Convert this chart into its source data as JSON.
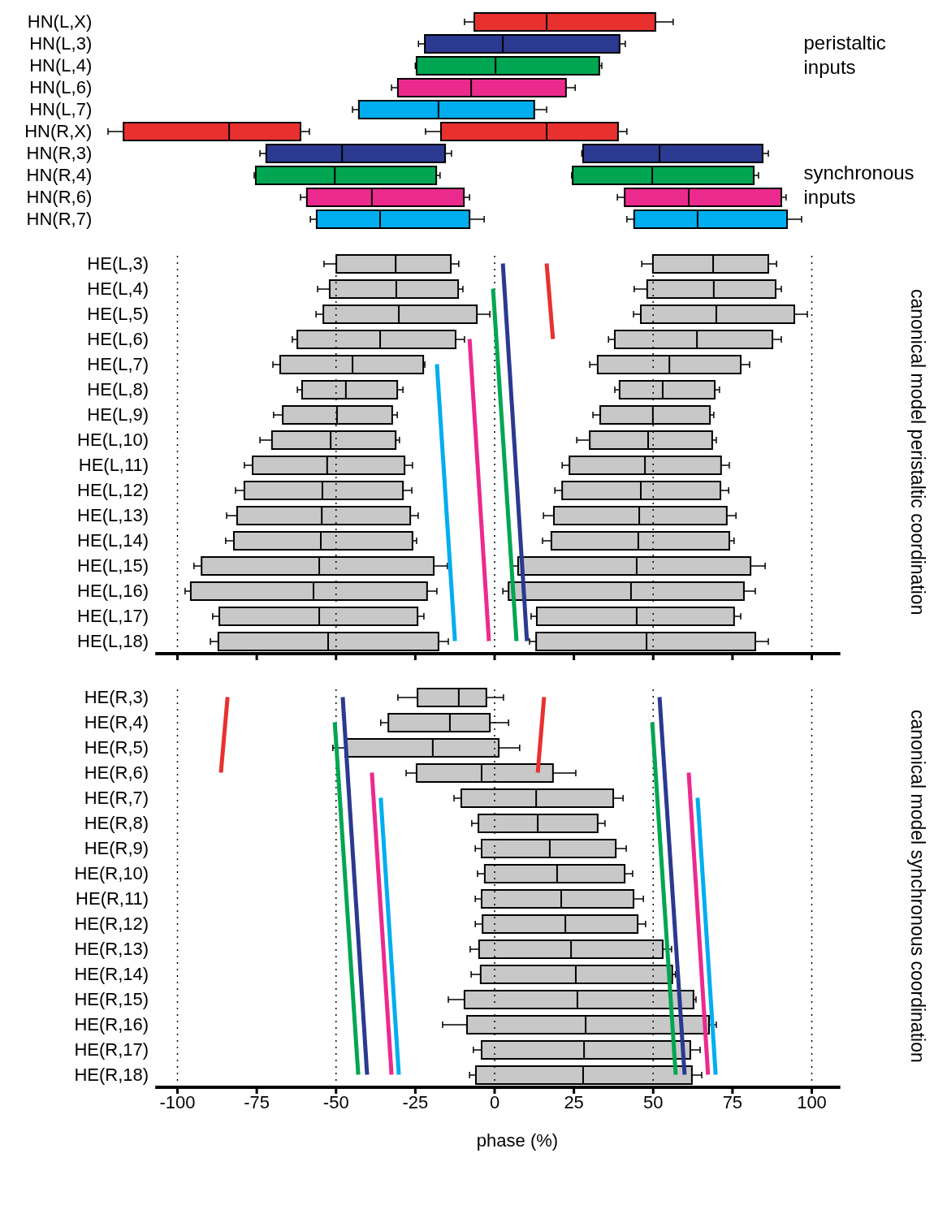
{
  "chart_data": [
    {
      "type": "box",
      "orientation": "horizontal",
      "categories": [
        "HN(L,X)",
        "HN(L,3)",
        "HN(L,4)",
        "HN(L,6)",
        "HN(L,7)",
        "HN(R,X)",
        "HN(R,3)",
        "HN(R,4)",
        "HN(R,6)",
        "HN(R,7)"
      ],
      "xticks": [
        -100,
        -75,
        -50,
        -25,
        0,
        25,
        50,
        75,
        100
      ],
      "tick_labels": "y",
      "annotations": [
        "peristaltic inputs",
        "synchronous inputs"
      ],
      "series": [
        {
          "colors": [
            "#e8312f",
            "#2b3990",
            "#00a651",
            "#ec2a8e",
            "#00aeef",
            "#e8312f",
            "#2b3990",
            "#00a651",
            "#ec2a8e",
            "#00aeef"
          ],
          "boxes": [
            {
              "low": -9.5,
              "q1": -6.4,
              "median": 16.4,
              "q3": 50.7,
              "high": 56.3
            },
            {
              "low": -24,
              "q1": -22,
              "median": 2.6,
              "q3": 39.4,
              "high": 41.2
            },
            {
              "low": -25,
              "q1": -24.6,
              "median": 0.3,
              "q3": 33,
              "high": 33.8
            },
            {
              "low": -32.5,
              "q1": -30.5,
              "median": -7.4,
              "q3": 22.5,
              "high": 25.4
            },
            {
              "low": -44.8,
              "q1": -42.8,
              "median": -17.7,
              "q3": 12.5,
              "high": 16.4
            },
            {
              "low": -121.9,
              "q1": -117,
              "median": -83.7,
              "q3": -61.2,
              "high": -58.4
            },
            {
              "low": -74,
              "q1": -72,
              "median": -48.1,
              "q3": -15.6,
              "high": -13.6
            },
            {
              "low": -75.8,
              "q1": -75.3,
              "median": -50.4,
              "q3": -18.4,
              "high": -17.2
            },
            {
              "low": -61.2,
              "q1": -59.2,
              "median": -38.7,
              "q3": -9.7,
              "high": -7.9
            },
            {
              "low": -58.1,
              "q1": -56.1,
              "median": -36.1,
              "q3": -7.9,
              "high": -3.3
            }
          ]
        },
        {
          "colors": [
            null,
            null,
            null,
            null,
            null,
            "#e8312f",
            "#2b3990",
            "#00a651",
            "#ec2a8e",
            "#00aeef"
          ],
          "boxes": [
            null,
            null,
            null,
            null,
            null,
            {
              "low": -21.8,
              "q1": -16.9,
              "median": 16.4,
              "q3": 38.9,
              "high": 41.7
            },
            {
              "low": 27.5,
              "q1": 27.9,
              "median": 52,
              "q3": 84.5,
              "high": 86.3
            },
            {
              "low": 24.3,
              "q1": 24.6,
              "median": 49.7,
              "q3": 81.7,
              "high": 83.2
            },
            {
              "low": 38.7,
              "q1": 41,
              "median": 61.2,
              "q3": 90.4,
              "high": 91.9
            },
            {
              "low": 41.7,
              "q1": 44,
              "median": 64,
              "q3": 92.2,
              "high": 96.8
            }
          ]
        }
      ]
    },
    {
      "type": "box",
      "orientation": "horizontal",
      "categories": [
        "HE(L,3)",
        "HE(L,4)",
        "HE(L,5)",
        "HE(L,6)",
        "HE(L,7)",
        "HE(L,8)",
        "HE(L,9)",
        "HE(L,10)",
        "HE(L,11)",
        "HE(L,12)",
        "HE(L,13)",
        "HE(L,14)",
        "HE(L,15)",
        "HE(L,16)",
        "HE(L,17)",
        "HE(L,18)"
      ],
      "xlim": [
        -107,
        109
      ],
      "xticks": [
        -100,
        -75,
        -50,
        -25,
        0,
        25,
        50,
        75,
        100
      ],
      "tick_labels": "y",
      "y2label": "canonical model peristaltic coordination",
      "ref_lines": [
        {
          "axis": "x",
          "value": -100,
          "line_style": "dotted"
        },
        {
          "axis": "x",
          "value": -50,
          "line_style": "dotted"
        },
        {
          "axis": "x",
          "value": 0,
          "line_style": "dotted"
        },
        {
          "axis": "x",
          "value": 50,
          "line_style": "dotted"
        },
        {
          "axis": "x",
          "value": 100,
          "line_style": "dotted"
        }
      ],
      "series": [
        {
          "color": "#c8c8c8",
          "boxes": [
            {
              "low": -53.8,
              "q1": -49.9,
              "median": -31.2,
              "q3": -13.8,
              "high": -11.3
            },
            {
              "low": -55.8,
              "q1": -52,
              "median": -31,
              "q3": -11.5,
              "high": -10
            },
            {
              "low": -56.3,
              "q1": -54,
              "median": -30.2,
              "q3": -5.6,
              "high": -1.5
            },
            {
              "low": -63.8,
              "q1": -62.2,
              "median": -36.1,
              "q3": -12.3,
              "high": -9.5
            },
            {
              "low": -69.9,
              "q1": -67.6,
              "median": -44.8,
              "q3": -22.5,
              "high": -22
            },
            {
              "low": -62.2,
              "q1": -60.7,
              "median": -46.9,
              "q3": -30.7,
              "high": -28.9
            },
            {
              "low": -69.7,
              "q1": -66.8,
              "median": -49.7,
              "q3": -32.3,
              "high": -30.7
            },
            {
              "low": -74,
              "q1": -70.2,
              "median": -51.7,
              "q3": -31.2,
              "high": -30
            },
            {
              "low": -78.9,
              "q1": -76.3,
              "median": -52.8,
              "q3": -28.4,
              "high": -25.9
            },
            {
              "low": -81.7,
              "q1": -78.9,
              "median": -54.3,
              "q3": -28.9,
              "high": -26.1
            },
            {
              "low": -84.5,
              "q1": -81.2,
              "median": -54.5,
              "q3": -26.6,
              "high": -24.1
            },
            {
              "low": -84.8,
              "q1": -82.2,
              "median": -54.8,
              "q3": -25.9,
              "high": -24.6
            },
            {
              "low": -94.8,
              "q1": -92.4,
              "median": -55.3,
              "q3": -19.2,
              "high": -14.9
            },
            {
              "low": -97.6,
              "q1": -95.8,
              "median": -57.1,
              "q3": -21.3,
              "high": -18.2
            },
            {
              "low": -88.9,
              "q1": -86.8,
              "median": -55.3,
              "q3": -24.3,
              "high": -22.3
            },
            {
              "low": -89.6,
              "q1": -87.1,
              "median": -52.5,
              "q3": -17.7,
              "high": -14.6
            }
          ]
        },
        {
          "color": "#c8c8c8",
          "boxes": [
            {
              "low": 46.4,
              "q1": 49.9,
              "median": 68.9,
              "q3": 86.3,
              "high": 88.9
            },
            {
              "low": 44,
              "q1": 48.1,
              "median": 69.1,
              "q3": 88.6,
              "high": 90.4
            },
            {
              "low": 43.8,
              "q1": 46.1,
              "median": 69.9,
              "q3": 94.5,
              "high": 98.6
            },
            {
              "low": 35.9,
              "q1": 37.9,
              "median": 63.8,
              "q3": 87.6,
              "high": 90.4
            },
            {
              "low": 30,
              "q1": 32.5,
              "median": 55.1,
              "q3": 77.6,
              "high": 80.4
            },
            {
              "low": 37.9,
              "q1": 39.4,
              "median": 53,
              "q3": 69.4,
              "high": 70.9
            },
            {
              "low": 31,
              "q1": 33.3,
              "median": 49.9,
              "q3": 67.9,
              "high": 69.1
            },
            {
              "low": 25.9,
              "q1": 30,
              "median": 48.4,
              "q3": 68.6,
              "high": 69.9
            },
            {
              "low": 21.3,
              "q1": 23.6,
              "median": 47.4,
              "q3": 71.4,
              "high": 74
            },
            {
              "low": 19,
              "q1": 21.3,
              "median": 46.1,
              "q3": 71.2,
              "high": 73.8
            },
            {
              "low": 15.4,
              "q1": 18.7,
              "median": 45.6,
              "q3": 73.2,
              "high": 76.1
            },
            {
              "low": 15.1,
              "q1": 17.9,
              "median": 45.3,
              "q3": 74,
              "high": 75.5
            },
            {
              "low": 5.1,
              "q1": 7.4,
              "median": 44.8,
              "q3": 80.7,
              "high": 85.3
            },
            {
              "low": 2.6,
              "q1": 4.4,
              "median": 43,
              "q3": 78.6,
              "high": 82.2
            },
            {
              "low": 11.5,
              "q1": 13.3,
              "median": 44.8,
              "q3": 75.5,
              "high": 77.6
            },
            {
              "low": 11,
              "q1": 13.1,
              "median": 47.9,
              "q3": 82.2,
              "high": 86.3
            }
          ]
        },
        {
          "type": "line",
          "color": "#00aeef",
          "values": [
            null,
            null,
            null,
            null,
            -18.2,
            null,
            null,
            null,
            null,
            null,
            null,
            null,
            null,
            null,
            null,
            -12.5
          ]
        },
        {
          "type": "line",
          "color": "#ec2a8e",
          "values": [
            null,
            null,
            null,
            -7.9,
            null,
            null,
            null,
            null,
            null,
            null,
            null,
            null,
            null,
            null,
            null,
            -1.8
          ]
        },
        {
          "type": "line",
          "color": "#00a651",
          "values": [
            null,
            -0.5,
            null,
            null,
            null,
            null,
            null,
            null,
            null,
            null,
            null,
            null,
            null,
            null,
            null,
            6.9
          ]
        },
        {
          "type": "line",
          "color": "#2b3990",
          "values": [
            2.6,
            null,
            null,
            null,
            null,
            null,
            null,
            null,
            null,
            null,
            null,
            null,
            null,
            null,
            null,
            10.2
          ]
        },
        {
          "type": "line",
          "color": "#e8312f",
          "values": [
            16.4,
            null,
            null,
            18.4,
            null,
            null,
            null,
            null,
            null,
            null,
            null,
            null,
            null,
            null,
            null,
            null
          ]
        }
      ]
    },
    {
      "type": "box",
      "orientation": "horizontal",
      "categories": [
        "HE(R,3)",
        "HE(R,4)",
        "HE(R,5)",
        "HE(R,6)",
        "HE(R,7)",
        "HE(R,8)",
        "HE(R,9)",
        "HE(R,10)",
        "HE(R,11)",
        "HE(R,12)",
        "HE(R,13)",
        "HE(R,14)",
        "HE(R,15)",
        "HE(R,16)",
        "HE(R,17)",
        "HE(R,18)"
      ],
      "xlim": [
        -107,
        109
      ],
      "xticks": [
        -100,
        -75,
        -50,
        -25,
        0,
        25,
        50,
        75,
        100
      ],
      "xlabel": "phase (%)",
      "y2label": "canonical model synchronous coordination",
      "ref_lines": [
        {
          "axis": "x",
          "value": -100,
          "line_style": "dotted"
        },
        {
          "axis": "x",
          "value": -50,
          "line_style": "dotted"
        },
        {
          "axis": "x",
          "value": 0,
          "line_style": "dotted"
        },
        {
          "axis": "x",
          "value": 50,
          "line_style": "dotted"
        },
        {
          "axis": "x",
          "value": 100,
          "line_style": "dotted"
        }
      ],
      "series": [
        {
          "color": "#c8c8c8",
          "boxes": [
            {
              "low": -30.5,
              "q1": -24.3,
              "median": -11.3,
              "q3": -2.6,
              "high": 2.8
            },
            {
              "low": -35.9,
              "q1": -33.5,
              "median": -14.1,
              "q3": -1.5,
              "high": 4.4
            },
            {
              "low": -51,
              "q1": -47.1,
              "median": -19.5,
              "q3": 1.3,
              "high": 7.9
            },
            {
              "low": -27.9,
              "q1": -24.6,
              "median": -4.1,
              "q3": 18.4,
              "high": 25.6
            },
            {
              "low": -12.8,
              "q1": -10.5,
              "median": 13.1,
              "q3": 37.4,
              "high": 40.5
            },
            {
              "low": -7.2,
              "q1": -5.1,
              "median": 13.6,
              "q3": 32.5,
              "high": 34.8
            },
            {
              "low": -6.1,
              "q1": -4.1,
              "median": 17.4,
              "q3": 38.2,
              "high": 41.5
            },
            {
              "low": -5.4,
              "q1": -3.1,
              "median": 19.7,
              "q3": 41,
              "high": 43.5
            },
            {
              "low": -6.1,
              "q1": -4.1,
              "median": 21,
              "q3": 43.8,
              "high": 46.9
            },
            {
              "low": -6.1,
              "q1": -3.8,
              "median": 22.3,
              "q3": 45.1,
              "high": 47.6
            },
            {
              "low": -7.7,
              "q1": -4.9,
              "median": 24.1,
              "q3": 53,
              "high": 55.8
            },
            {
              "low": -7.4,
              "q1": -4.4,
              "median": 25.6,
              "q3": 56,
              "high": 57
            },
            {
              "low": -14.6,
              "q1": -9.5,
              "median": 26.1,
              "q3": 62.7,
              "high": 63.5
            },
            {
              "low": -16.4,
              "q1": -8.7,
              "median": 28.7,
              "q3": 67.6,
              "high": 69.9
            },
            {
              "low": -6.7,
              "q1": -4.1,
              "median": 28.2,
              "q3": 61.7,
              "high": 64.8
            },
            {
              "low": -7.9,
              "q1": -5.9,
              "median": 27.9,
              "q3": 62.2,
              "high": 65.3
            }
          ]
        },
        {
          "type": "line",
          "color": "#e8312f",
          "values": [
            -84.2,
            null,
            null,
            -86.3,
            null,
            null,
            null,
            null,
            null,
            null,
            null,
            null,
            null,
            null,
            null,
            null
          ]
        },
        {
          "type": "line",
          "color": "#e8312f",
          "values": [
            15.6,
            null,
            null,
            13.6,
            null,
            null,
            null,
            null,
            null,
            null,
            null,
            null,
            null,
            null,
            null,
            null
          ]
        },
        {
          "type": "line",
          "color": "#00a651",
          "values": [
            null,
            -50.4,
            null,
            null,
            null,
            null,
            null,
            null,
            null,
            null,
            null,
            null,
            null,
            null,
            null,
            -43
          ]
        },
        {
          "type": "line",
          "color": "#2b3990",
          "values": [
            -47.9,
            null,
            null,
            null,
            null,
            null,
            null,
            null,
            null,
            null,
            null,
            null,
            null,
            null,
            null,
            -40.2
          ]
        },
        {
          "type": "line",
          "color": "#ec2a8e",
          "values": [
            null,
            null,
            null,
            -38.7,
            null,
            null,
            null,
            null,
            null,
            null,
            null,
            null,
            null,
            null,
            null,
            -32.5
          ]
        },
        {
          "type": "line",
          "color": "#00aeef",
          "values": [
            null,
            null,
            null,
            null,
            -35.9,
            null,
            null,
            null,
            null,
            null,
            null,
            null,
            null,
            null,
            null,
            -30.2
          ]
        },
        {
          "type": "line",
          "color": "#00a651",
          "values": [
            null,
            49.7,
            null,
            null,
            null,
            null,
            null,
            null,
            null,
            null,
            null,
            null,
            null,
            null,
            null,
            57.1
          ]
        },
        {
          "type": "line",
          "color": "#2b3990",
          "values": [
            52,
            null,
            null,
            null,
            null,
            null,
            null,
            null,
            null,
            null,
            null,
            null,
            null,
            null,
            null,
            59.9
          ]
        },
        {
          "type": "line",
          "color": "#ec2a8e",
          "values": [
            null,
            null,
            null,
            61.2,
            null,
            null,
            null,
            null,
            null,
            null,
            null,
            null,
            null,
            null,
            null,
            67.3
          ]
        },
        {
          "type": "line",
          "color": "#00aeef",
          "values": [
            null,
            null,
            null,
            null,
            64,
            null,
            null,
            null,
            null,
            null,
            null,
            null,
            null,
            null,
            null,
            69.7
          ]
        }
      ]
    }
  ]
}
